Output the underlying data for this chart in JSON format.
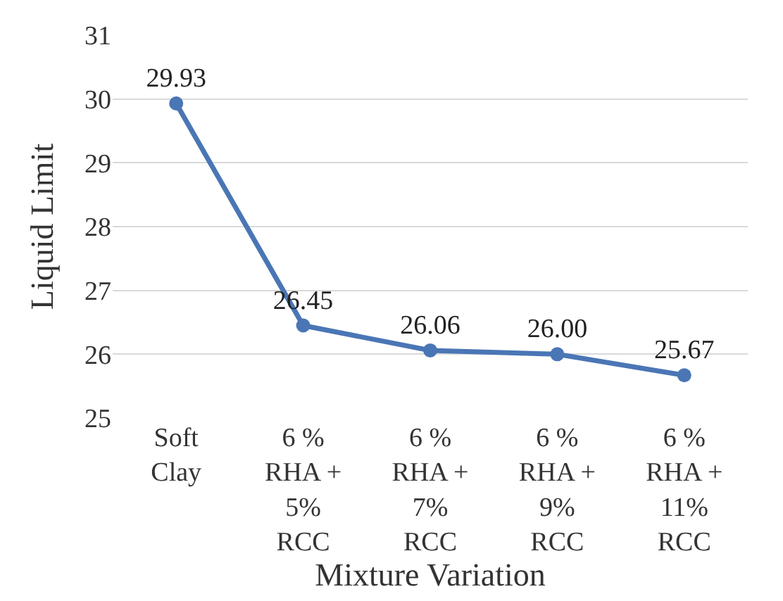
{
  "chart_data": {
    "type": "line",
    "xlabel": "Mixture Variation",
    "ylabel": "Liquid Limit",
    "categories": [
      "Soft Clay",
      "6 % RHA + 5% RCC",
      "6 % RHA + 7% RCC",
      "6 % RHA + 9% RCC",
      "6 % RHA + 11% RCC"
    ],
    "series": [
      {
        "color": "#4a76b5",
        "values": [
          29.93,
          26.45,
          26.06,
          26.0,
          25.67
        ],
        "value_labels": [
          "29.93",
          "26.45",
          "26.06",
          "26.00",
          "25.67"
        ]
      }
    ],
    "ylim": [
      25,
      31
    ],
    "yticks": [
      25,
      26,
      27,
      28,
      29,
      30,
      31
    ],
    "grid": "y",
    "marker": "circle",
    "line_style": "solid"
  }
}
